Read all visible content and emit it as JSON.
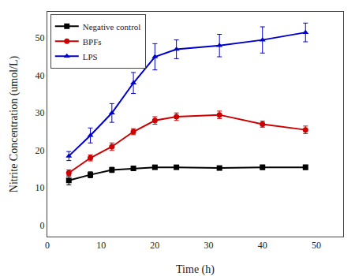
{
  "chart_data": {
    "type": "line",
    "xlabel": "Time (h)",
    "ylabel": "Nitrite Concentration (umol/L)",
    "x": [
      4,
      8,
      12,
      16,
      20,
      24,
      32,
      40,
      48
    ],
    "series": [
      {
        "name": "Negative control",
        "color": "#000000",
        "marker": "square",
        "values": [
          12.0,
          13.5,
          14.8,
          15.2,
          15.5,
          15.5,
          15.3,
          15.5,
          15.5
        ],
        "errors": [
          1.2,
          0.8,
          0.7,
          0.6,
          0.5,
          0.5,
          0.5,
          0.6,
          0.6
        ]
      },
      {
        "name": "BPFs",
        "color": "#cc0000",
        "marker": "circle",
        "values": [
          14.0,
          18.0,
          21.0,
          25.0,
          28.0,
          29.0,
          29.5,
          27.0,
          25.5
        ],
        "errors": [
          0.8,
          0.8,
          1.0,
          0.8,
          1.0,
          1.0,
          1.0,
          0.8,
          1.0
        ]
      },
      {
        "name": "LPS",
        "color": "#0000cc",
        "marker": "triangle-up",
        "values": [
          18.5,
          24.0,
          30.0,
          38.0,
          45.0,
          47.0,
          48.0,
          49.5,
          51.5
        ],
        "errors": [
          1.2,
          2.0,
          2.5,
          2.8,
          3.5,
          2.5,
          3.0,
          3.5,
          2.5
        ]
      }
    ],
    "xlim": [
      0,
      55
    ],
    "xticks": [
      0,
      10,
      20,
      30,
      40,
      50
    ],
    "ylim": [
      -3,
      57
    ],
    "yticks": [
      0,
      10,
      20,
      30,
      40,
      50
    ],
    "grid": false,
    "legend": "upper left"
  }
}
